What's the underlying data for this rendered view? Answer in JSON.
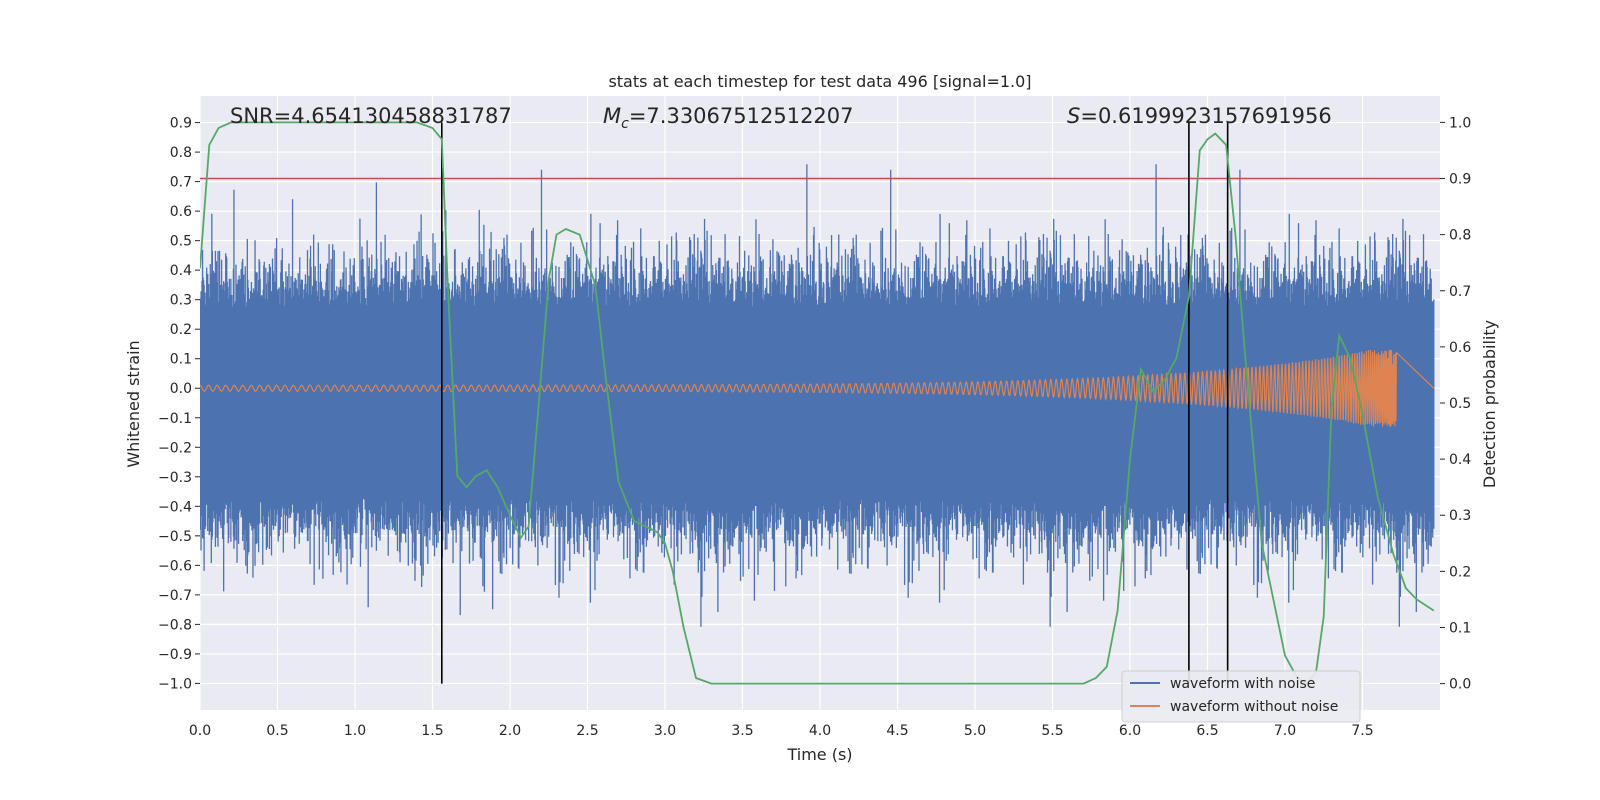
{
  "chart_data": {
    "type": "line",
    "title": "stats at each timestep for test data 496 [signal=1.0]",
    "xlabel": "Time (s)",
    "ylabel": "Whitened strain",
    "y2label": "Detection probability",
    "xlim": [
      0.0,
      8.0
    ],
    "ylim": [
      -1.09,
      0.99
    ],
    "y2lim": [
      -0.047,
      1.047
    ],
    "xticks": [
      "0.0",
      "0.5",
      "1.0",
      "1.5",
      "2.0",
      "2.5",
      "3.0",
      "3.5",
      "4.0",
      "4.5",
      "5.0",
      "5.5",
      "6.0",
      "6.5",
      "7.0",
      "7.5"
    ],
    "yticks": [
      "−1.0",
      "−0.9",
      "−0.8",
      "−0.7",
      "−0.6",
      "−0.5",
      "−0.4",
      "−0.3",
      "−0.2",
      "−0.1",
      "0.0",
      "0.1",
      "0.2",
      "0.3",
      "0.4",
      "0.5",
      "0.6",
      "0.7",
      "0.8",
      "0.9"
    ],
    "y2ticks": [
      "0.0",
      "0.1",
      "0.2",
      "0.3",
      "0.4",
      "0.5",
      "0.6",
      "0.7",
      "0.8",
      "0.9",
      "1.0"
    ],
    "annotations": {
      "snr": "SNR=4.654130458831787",
      "mc": "=7.33067512512207",
      "s": "=0.6199923157691956",
      "mc_symbol": "M",
      "mc_sub": "c",
      "s_symbol": "S"
    },
    "threshold": 0.9,
    "vlines": [
      1.56,
      6.38,
      6.63
    ],
    "grid": true,
    "legend": {
      "placement": "lower-right",
      "entries": [
        "waveform with noise",
        "waveform without noise"
      ]
    },
    "colors": {
      "noise": "#4c72b0",
      "clean": "#dd8452",
      "probability": "#55a868",
      "threshold": "#c44e52",
      "vlines": "#000000",
      "background": "#eaeaf2",
      "grid": "#ffffff"
    },
    "series": [
      {
        "name": "waveform with noise",
        "axis": "left",
        "envelope": {
          "typical_upper": 0.33,
          "typical_lower": -0.43,
          "peak_upper": 0.89,
          "peak_lower": -1.0
        }
      },
      {
        "name": "waveform without noise",
        "axis": "left",
        "chirp": {
          "start_amp": 0.01,
          "end_amp": 0.13,
          "merger_time": 7.72,
          "start_freq_hz": 18
        }
      },
      {
        "name": "Detection probability",
        "axis": "right",
        "x": [
          0.0,
          0.06,
          0.12,
          0.2,
          0.4,
          0.6,
          0.8,
          1.0,
          1.2,
          1.4,
          1.5,
          1.56,
          1.6,
          1.66,
          1.72,
          1.78,
          1.85,
          1.92,
          2.0,
          2.07,
          2.12,
          2.18,
          2.25,
          2.3,
          2.36,
          2.45,
          2.55,
          2.62,
          2.7,
          2.8,
          2.95,
          3.0,
          3.05,
          3.12,
          3.2,
          3.3,
          3.6,
          4.0,
          4.5,
          5.0,
          5.3,
          5.5,
          5.7,
          5.78,
          5.85,
          5.92,
          6.0,
          6.07,
          6.15,
          6.22,
          6.3,
          6.38,
          6.45,
          6.5,
          6.55,
          6.62,
          6.68,
          6.75,
          6.85,
          7.0,
          7.08,
          7.14,
          7.2,
          7.25,
          7.3,
          7.35,
          7.42,
          7.5,
          7.6,
          7.7,
          7.78,
          7.85,
          7.96
        ],
        "values": [
          0.74,
          0.96,
          0.99,
          1.0,
          1.0,
          1.0,
          1.0,
          1.0,
          1.0,
          1.0,
          0.99,
          0.97,
          0.7,
          0.37,
          0.35,
          0.37,
          0.38,
          0.35,
          0.3,
          0.26,
          0.28,
          0.48,
          0.72,
          0.8,
          0.81,
          0.8,
          0.71,
          0.54,
          0.36,
          0.29,
          0.27,
          0.25,
          0.2,
          0.1,
          0.01,
          0.0,
          0.0,
          0.0,
          0.0,
          0.0,
          0.0,
          0.0,
          0.0,
          0.01,
          0.03,
          0.13,
          0.4,
          0.56,
          0.52,
          0.54,
          0.58,
          0.69,
          0.95,
          0.97,
          0.98,
          0.96,
          0.8,
          0.56,
          0.25,
          0.05,
          0.01,
          0.0,
          0.02,
          0.12,
          0.49,
          0.62,
          0.58,
          0.48,
          0.33,
          0.23,
          0.17,
          0.15,
          0.13
        ]
      }
    ]
  }
}
